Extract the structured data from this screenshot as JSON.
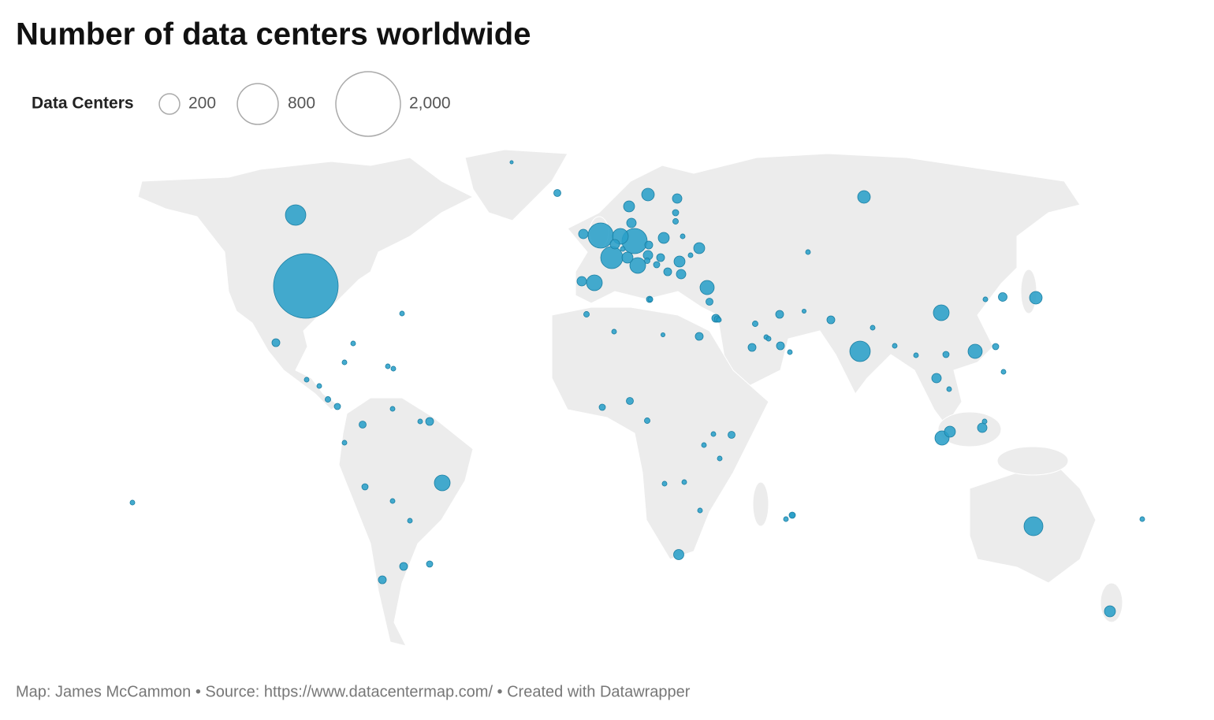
{
  "title": "Number of data centers worldwide",
  "chart_data": {
    "type": "bubble-map",
    "color": "#2a9fc8",
    "size_legend": {
      "title": "Data Centers",
      "items": [
        200,
        800,
        {
          "value": 2000,
          "label": "2,000"
        }
      ]
    },
    "values": [
      2000,
      200,
      5,
      24,
      305,
      305,
      233,
      119,
      43,
      119,
      43,
      119,
      58,
      43,
      58,
      76,
      43,
      43,
      58,
      76,
      58,
      43,
      30,
      58,
      96,
      43,
      119,
      30,
      119,
      200,
      76,
      36,
      96,
      96,
      58,
      171,
      58,
      50,
      30,
      30,
      24,
      24,
      24,
      30,
      30,
      30,
      30,
      30,
      30,
      43,
      19,
      43,
      19,
      11,
      11,
      15,
      11,
      19,
      19,
      19,
      11,
      11,
      11,
      11,
      19,
      15,
      11,
      11,
      11,
      11,
      11,
      11,
      11,
      19,
      11,
      11,
      11,
      11,
      24,
      19,
      19,
      11,
      11,
      11,
      11,
      11,
      11,
      15,
      11,
      11,
      11,
      11,
      11,
      11,
      11,
      15,
      11,
      11,
      30,
      19,
      15,
      11,
      30,
      30,
      19,
      15,
      11,
      11,
      11,
      8,
      8,
      11,
      11
    ]
  },
  "footer": "Map: James McCammon • Source: https://www.datacentermap.com/ • Created with Datawrapper"
}
